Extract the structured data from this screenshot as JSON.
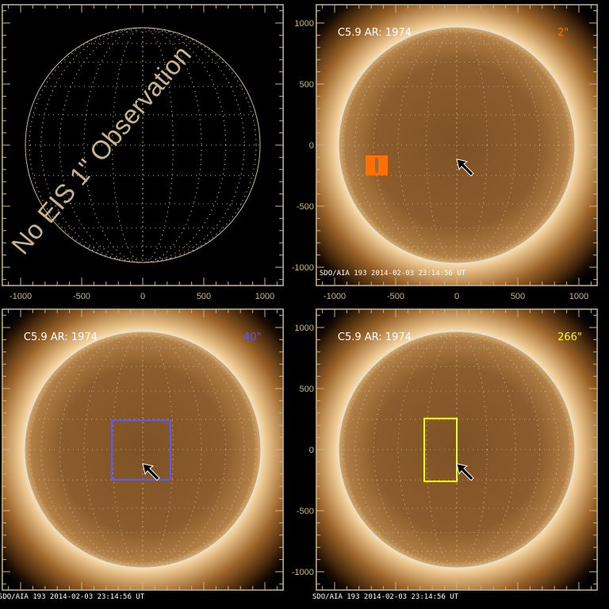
{
  "colors": {
    "axis": "#c8b48c",
    "blue_box": "#5a5aff",
    "yellow_box": "#ffff00",
    "orange_box": "#ff7000",
    "overlay_text": "#c8b48c"
  },
  "axes": {
    "range_arcsec": [
      -1150,
      1150
    ],
    "tick_labels": [
      "-1000",
      "-500",
      "0",
      "500",
      "1000"
    ]
  },
  "panels": [
    {
      "id": "top-left",
      "no_data_text": "No EIS 1\" Observation"
    },
    {
      "id": "top-right",
      "label": "C5.9 AR: 1974",
      "fov": "2\"",
      "fov_color": "#ff7000",
      "stamp": "SDO/AIA 193   2014-02-03 23:14:56 UT",
      "box": {
        "x": [
          -747,
          -565
        ],
        "y": [
          -247,
          -84
        ]
      },
      "arrow_tip": [
        0,
        -115
      ]
    },
    {
      "id": "bottom-left",
      "label": "C5.9 AR: 1974",
      "fov": "40\"",
      "fov_color": "#5a5aff",
      "stamp": "SDO/AIA 193   2014-02-03 23:14:56 UT",
      "box": {
        "x": [
          -253,
          227
        ],
        "y": [
          -247,
          240
        ]
      },
      "arrow_tip": [
        0,
        -115
      ]
    },
    {
      "id": "bottom-right",
      "label": "C5.9 AR: 1974",
      "fov": "266\"",
      "fov_color": "#ffff00",
      "stamp": "SDO/AIA 193   2014-02-03 23:14:56 UT",
      "box": {
        "x": [
          -266,
          0
        ],
        "y": [
          -260,
          255
        ]
      },
      "arrow_tip": [
        0,
        -115
      ]
    }
  ]
}
